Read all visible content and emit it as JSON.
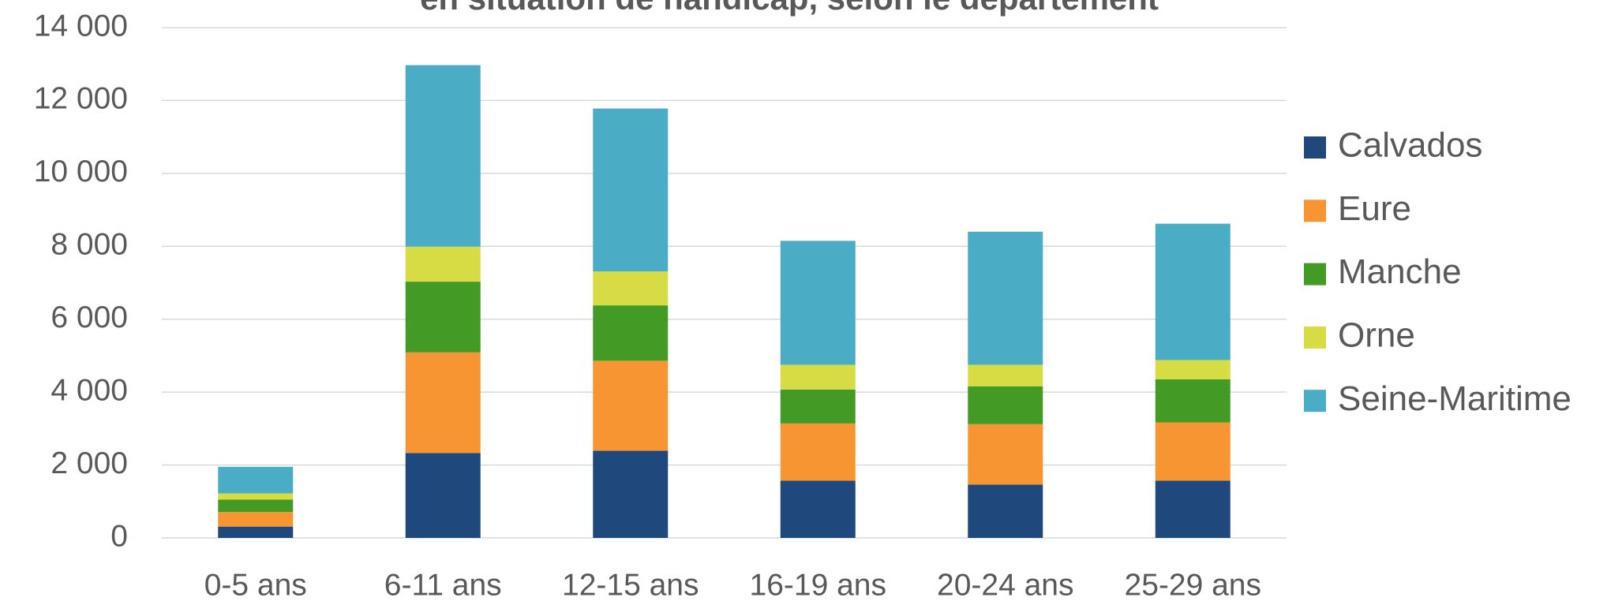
{
  "chart_data": {
    "type": "stacked_bar",
    "title": "en situation de handicap, selon le département",
    "categories": [
      "0-5 ans",
      "6-11 ans",
      "12-15 ans",
      "16-19 ans",
      "20-24 ans",
      "25-29 ans"
    ],
    "series": [
      {
        "name": "Calvados",
        "color": "#1f497d",
        "values": [
          310,
          2330,
          2390,
          1570,
          1460,
          1570
        ]
      },
      {
        "name": "Eure",
        "color": "#f79533",
        "values": [
          400,
          2760,
          2470,
          1570,
          1660,
          1600
        ]
      },
      {
        "name": "Manche",
        "color": "#439a25",
        "values": [
          340,
          1940,
          1520,
          930,
          1040,
          1180
        ]
      },
      {
        "name": "Orne",
        "color": "#d7dc45",
        "values": [
          170,
          960,
          930,
          680,
          590,
          530
        ]
      },
      {
        "name": "Seine-Maritime",
        "color": "#4bacc6",
        "values": [
          730,
          4980,
          4470,
          3400,
          3650,
          3740
        ]
      }
    ],
    "ylim": [
      0,
      14000
    ],
    "yticks": [
      0,
      {
        "value": 2000,
        "label": "2 000"
      },
      {
        "value": 4000,
        "label": "4 000"
      },
      {
        "value": 6000,
        "label": "6 000"
      },
      {
        "value": 8000,
        "label": "8 000"
      },
      {
        "value": 10000,
        "label": "10 000"
      },
      {
        "value": 12000,
        "label": "12 000"
      },
      {
        "value": 14000,
        "label": "14 000"
      }
    ],
    "grid": true,
    "legend": "right"
  }
}
